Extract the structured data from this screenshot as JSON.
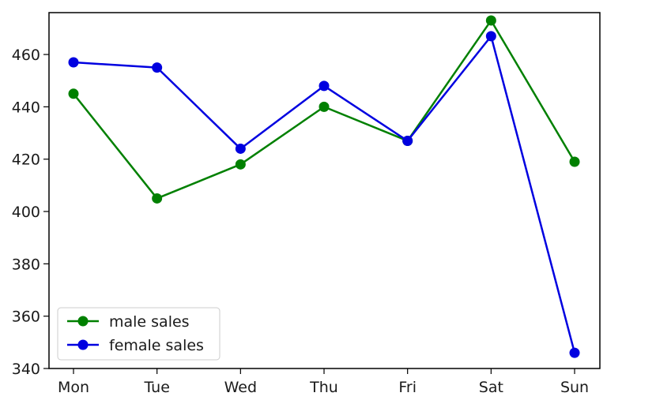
{
  "chart_data": {
    "type": "line",
    "categories": [
      "Mon",
      "Tue",
      "Wed",
      "Thu",
      "Fri",
      "Sat",
      "Sun"
    ],
    "series": [
      {
        "name": "male sales",
        "color": "#008000",
        "values": [
          445,
          405,
          418,
          440,
          427,
          473,
          419
        ]
      },
      {
        "name": "female sales",
        "color": "#0000e0",
        "values": [
          457,
          455,
          424,
          448,
          427,
          467,
          346
        ]
      }
    ],
    "yticks": [
      340,
      360,
      380,
      400,
      420,
      440,
      460
    ],
    "ylim": [
      340,
      476
    ],
    "xlabel": "",
    "ylabel": "",
    "title": "",
    "grid": false,
    "legend_position": "lower-left"
  }
}
